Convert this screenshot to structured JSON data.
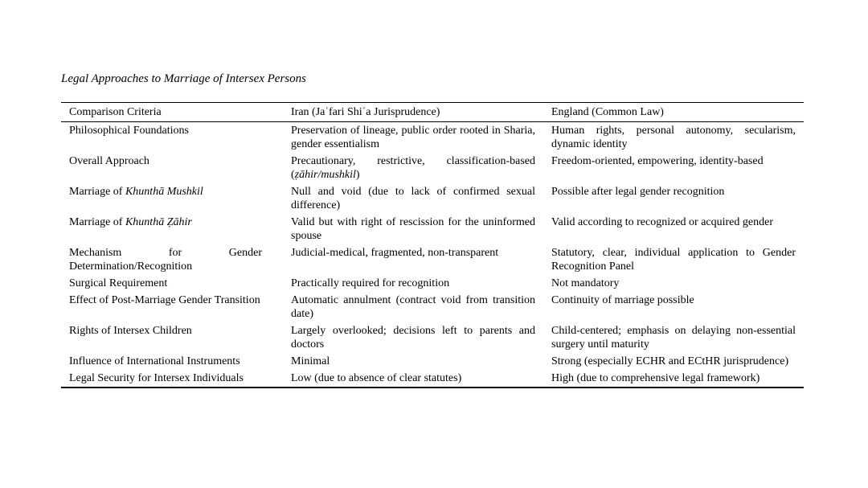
{
  "title": "Legal Approaches to Marriage of Intersex Persons",
  "table": {
    "headers": [
      "Comparison Criteria",
      "Iran (Jaʿfari Shiʿa Jurisprudence)",
      "England (Common Law)"
    ],
    "rows": [
      {
        "criteria": [
          {
            "t": "Philosophical Foundations",
            "i": false
          }
        ],
        "iran": [
          {
            "t": "Preservation of lineage, public order rooted in Sharia, gender essentialism",
            "i": false
          }
        ],
        "england": [
          {
            "t": "Human rights, personal autonomy, secularism, dynamic identity",
            "i": false
          }
        ]
      },
      {
        "criteria": [
          {
            "t": "Overall Approach",
            "i": false
          }
        ],
        "iran": [
          {
            "t": "Precautionary, restrictive, classification-based (",
            "i": false
          },
          {
            "t": "ẓāhir/mushkil",
            "i": true
          },
          {
            "t": ")",
            "i": false
          }
        ],
        "england": [
          {
            "t": "Freedom-oriented, empowering, identity-based",
            "i": false
          }
        ]
      },
      {
        "criteria": [
          {
            "t": "Marriage of ",
            "i": false
          },
          {
            "t": "Khunthā Mushkil",
            "i": true
          }
        ],
        "iran": [
          {
            "t": "Null and void (due to lack of confirmed sexual difference)",
            "i": false
          }
        ],
        "england": [
          {
            "t": "Possible after legal gender recognition",
            "i": false
          }
        ]
      },
      {
        "criteria": [
          {
            "t": "Marriage of ",
            "i": false
          },
          {
            "t": "Khunthā Ẓāhir",
            "i": true
          }
        ],
        "iran": [
          {
            "t": "Valid but with right of rescission for the uninformed spouse",
            "i": false
          }
        ],
        "england": [
          {
            "t": "Valid according to recognized or acquired gender",
            "i": false
          }
        ]
      },
      {
        "criteria": [
          {
            "t": "Mechanism for Gender Determination/Recognition",
            "i": false
          }
        ],
        "iran": [
          {
            "t": "Judicial-medical, fragmented, non-transparent",
            "i": false
          }
        ],
        "england": [
          {
            "t": "Statutory, clear, individual application to Gender Recognition Panel",
            "i": false
          }
        ]
      },
      {
        "criteria": [
          {
            "t": "Surgical Requirement",
            "i": false
          }
        ],
        "iran": [
          {
            "t": "Practically required for recognition",
            "i": false
          }
        ],
        "england": [
          {
            "t": "Not mandatory",
            "i": false
          }
        ]
      },
      {
        "criteria": [
          {
            "t": "Effect of Post-Marriage Gender Transition",
            "i": false
          }
        ],
        "iran": [
          {
            "t": "Automatic annulment (contract void from transition date)",
            "i": false
          }
        ],
        "england": [
          {
            "t": "Continuity of marriage possible",
            "i": false
          }
        ]
      },
      {
        "criteria": [
          {
            "t": "Rights of Intersex Children",
            "i": false
          }
        ],
        "iran": [
          {
            "t": "Largely overlooked; decisions left to parents and doctors",
            "i": false
          }
        ],
        "england": [
          {
            "t": "Child-centered; emphasis on delaying non-essential surgery until maturity",
            "i": false
          }
        ]
      },
      {
        "criteria": [
          {
            "t": "Influence of International Instruments",
            "i": false
          }
        ],
        "iran": [
          {
            "t": "Minimal",
            "i": false
          }
        ],
        "england": [
          {
            "t": "Strong (especially ECHR and ECtHR jurisprudence)",
            "i": false
          }
        ]
      },
      {
        "criteria": [
          {
            "t": "Legal Security for Intersex Individuals",
            "i": false
          }
        ],
        "iran": [
          {
            "t": "Low (due to absence of clear statutes)",
            "i": false
          }
        ],
        "england": [
          {
            "t": "High (due to comprehensive legal framework)",
            "i": false
          }
        ]
      }
    ]
  }
}
